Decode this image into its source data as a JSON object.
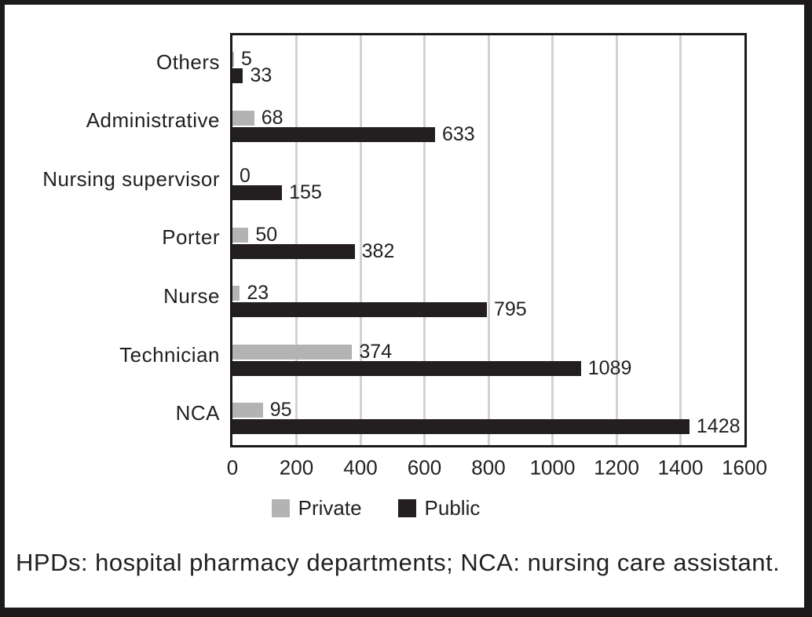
{
  "chart_data": {
    "type": "bar",
    "orientation": "horizontal",
    "title": "",
    "xlabel": "",
    "ylabel": "",
    "categories": [
      "Others",
      "Administrative",
      "Nursing supervisor",
      "Porter",
      "Nurse",
      "Technician",
      "NCA"
    ],
    "series": [
      {
        "name": "Private",
        "color": "#b3b3b3",
        "values": [
          5,
          68,
          0,
          50,
          23,
          374,
          95
        ]
      },
      {
        "name": "Public",
        "color": "#231f20",
        "values": [
          33,
          633,
          155,
          382,
          795,
          1089,
          1428
        ]
      }
    ],
    "x_ticks": [
      "0",
      "200",
      "400",
      "600",
      "800",
      "1000",
      "1200",
      "1400",
      "1600"
    ],
    "xlim": [
      0,
      1600
    ],
    "grid": "vertical-gridlines-every-200",
    "gridline_color": "#d2d2d2",
    "legend_position": "bottom",
    "footnote": "HPDs: hospital pharmacy departments; NCA: nursing care assistant."
  }
}
